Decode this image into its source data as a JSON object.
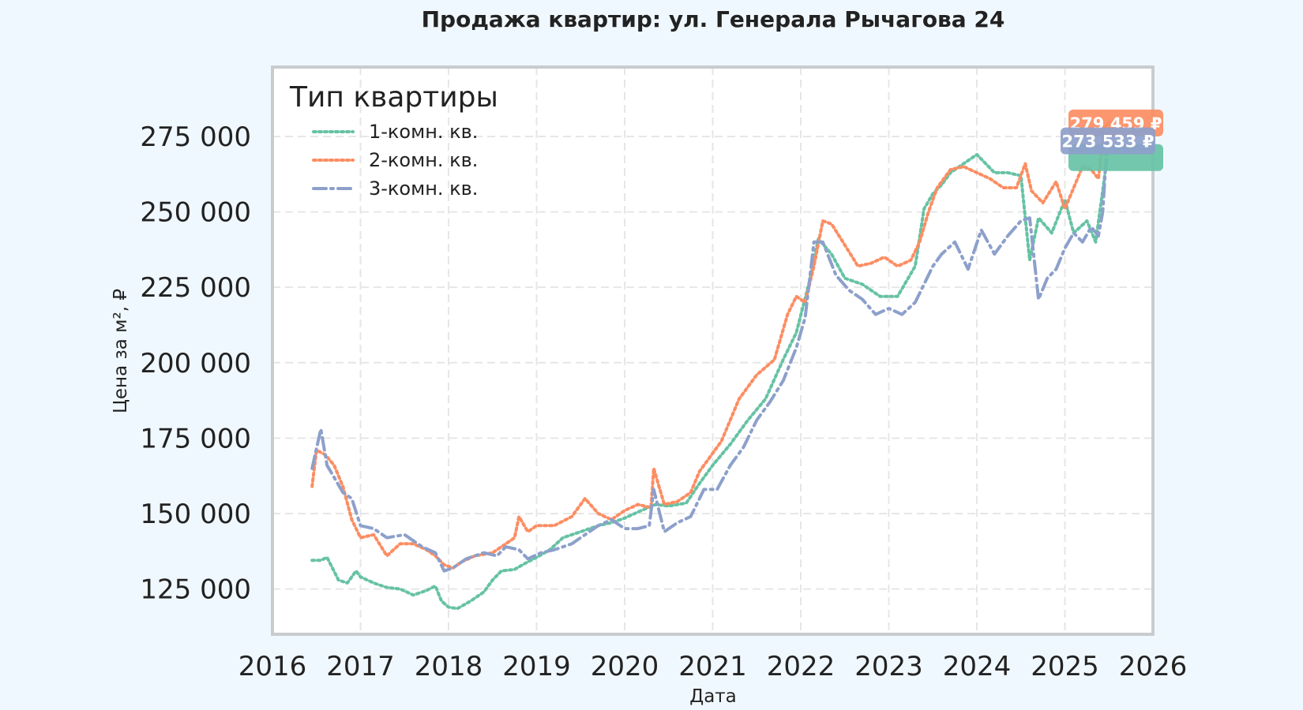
{
  "chart_data": {
    "type": "line",
    "title": "Продажа квартир: ул. Генерала Рычагова 24",
    "xlabel": "Дата",
    "ylabel": "Цена за м², ₽",
    "xlim": [
      2016.0,
      2026.0
    ],
    "ylim": [
      110000,
      298000
    ],
    "x_ticks": [
      2016,
      2017,
      2018,
      2019,
      2020,
      2021,
      2022,
      2023,
      2024,
      2025,
      2026
    ],
    "x_tick_labels": [
      "2016",
      "2017",
      "2018",
      "2019",
      "2020",
      "2021",
      "2022",
      "2023",
      "2024",
      "2025",
      "2026"
    ],
    "y_ticks": [
      125000,
      150000,
      175000,
      200000,
      225000,
      250000,
      275000
    ],
    "y_tick_labels": [
      "125 000",
      "150 000",
      "175 000",
      "200 000",
      "225 000",
      "250 000",
      "275 000"
    ],
    "grid": true,
    "legend": {
      "title": "Тип квартиры",
      "position": "top-left"
    },
    "series": [
      {
        "name": "1-комн. кв.",
        "color": "#66c2a5",
        "style": "dotted",
        "x": [
          2016.45,
          2016.55,
          2016.62,
          2016.75,
          2016.85,
          2016.95,
          2017.0,
          2017.15,
          2017.3,
          2017.45,
          2017.6,
          2017.75,
          2017.85,
          2017.92,
          2018.0,
          2018.1,
          2018.25,
          2018.4,
          2018.5,
          2018.6,
          2018.75,
          2018.9,
          2019.0,
          2019.15,
          2019.3,
          2019.5,
          2019.7,
          2019.85,
          2020.0,
          2020.15,
          2020.35,
          2020.5,
          2020.7,
          2020.85,
          2021.0,
          2021.2,
          2021.4,
          2021.6,
          2021.8,
          2021.95,
          2022.1,
          2022.2,
          2022.35,
          2022.5,
          2022.7,
          2022.9,
          2023.1,
          2023.3,
          2023.4,
          2023.5,
          2023.6,
          2023.7,
          2023.85,
          2024.0,
          2024.2,
          2024.35,
          2024.5,
          2024.6,
          2024.7,
          2024.85,
          2025.0,
          2025.1,
          2025.25,
          2025.35,
          2025.42,
          2025.48
        ],
        "values": [
          134500,
          134500,
          135500,
          128000,
          127000,
          131000,
          129000,
          127000,
          125500,
          125000,
          123000,
          124500,
          126000,
          121000,
          119000,
          118500,
          121000,
          124000,
          128000,
          131000,
          131500,
          134000,
          135500,
          138000,
          142000,
          144000,
          146000,
          147000,
          148500,
          150500,
          153000,
          152500,
          153500,
          160000,
          166000,
          173000,
          181000,
          188000,
          201000,
          210000,
          227000,
          241000,
          236000,
          228000,
          226000,
          222000,
          222000,
          232000,
          251000,
          256000,
          259000,
          263000,
          266000,
          269000,
          263000,
          263000,
          262000,
          234000,
          248000,
          243000,
          254000,
          243000,
          247000,
          240000,
          255000,
          268000
        ]
      },
      {
        "name": "2-комн. кв.",
        "color": "#fc8d62",
        "style": "dotted",
        "x": [
          2016.45,
          2016.5,
          2016.6,
          2016.7,
          2016.8,
          2016.9,
          2017.0,
          2017.15,
          2017.3,
          2017.45,
          2017.6,
          2017.75,
          2017.85,
          2017.95,
          2018.05,
          2018.15,
          2018.3,
          2018.5,
          2018.65,
          2018.75,
          2018.8,
          2018.9,
          2019.0,
          2019.2,
          2019.4,
          2019.55,
          2019.7,
          2019.85,
          2020.0,
          2020.15,
          2020.3,
          2020.33,
          2020.45,
          2020.6,
          2020.75,
          2020.85,
          2020.95,
          2021.1,
          2021.3,
          2021.5,
          2021.7,
          2021.85,
          2021.95,
          2022.05,
          2022.15,
          2022.25,
          2022.35,
          2022.5,
          2022.65,
          2022.8,
          2022.95,
          2023.1,
          2023.25,
          2023.35,
          2023.45,
          2023.55,
          2023.7,
          2023.85,
          2024.0,
          2024.15,
          2024.3,
          2024.45,
          2024.55,
          2024.62,
          2024.75,
          2024.9,
          2025.0,
          2025.1,
          2025.2,
          2025.3,
          2025.38,
          2025.45,
          2025.5
        ],
        "values": [
          159000,
          171000,
          169500,
          166000,
          159000,
          148000,
          142000,
          143000,
          136000,
          140000,
          140000,
          138000,
          136000,
          133000,
          132000,
          134000,
          136000,
          137000,
          140000,
          142000,
          149000,
          144000,
          146000,
          146000,
          149000,
          155000,
          150000,
          148000,
          151000,
          153000,
          152000,
          165000,
          153000,
          154000,
          157000,
          164000,
          168000,
          174000,
          188000,
          196000,
          201000,
          216000,
          222000,
          220000,
          232000,
          247000,
          246000,
          239000,
          232000,
          233000,
          235000,
          232000,
          234000,
          240000,
          250000,
          258000,
          264000,
          265000,
          263000,
          261000,
          258000,
          258000,
          266000,
          257000,
          253000,
          260000,
          251000,
          258000,
          265000,
          264000,
          261000,
          278000,
          279459
        ]
      },
      {
        "name": "3-комн. кв.",
        "color": "#8da0cb",
        "style": "dashdot",
        "x": [
          2016.45,
          2016.55,
          2016.62,
          2016.7,
          2016.8,
          2016.9,
          2017.0,
          2017.15,
          2017.3,
          2017.5,
          2017.7,
          2017.85,
          2017.95,
          2018.05,
          2018.2,
          2018.4,
          2018.55,
          2018.65,
          2018.8,
          2018.9,
          2019.05,
          2019.2,
          2019.4,
          2019.55,
          2019.7,
          2019.85,
          2020.0,
          2020.15,
          2020.28,
          2020.33,
          2020.45,
          2020.6,
          2020.75,
          2020.9,
          2021.05,
          2021.2,
          2021.35,
          2021.5,
          2021.65,
          2021.8,
          2021.95,
          2022.05,
          2022.15,
          2022.25,
          2022.4,
          2022.55,
          2022.7,
          2022.85,
          2023.0,
          2023.15,
          2023.3,
          2023.4,
          2023.5,
          2023.6,
          2023.75,
          2023.9,
          2024.05,
          2024.2,
          2024.35,
          2024.5,
          2024.6,
          2024.7,
          2024.8,
          2024.9,
          2025.0,
          2025.1,
          2025.2,
          2025.3,
          2025.38,
          2025.43,
          2025.48
        ],
        "values": [
          165000,
          178000,
          166000,
          162000,
          157000,
          155000,
          146000,
          145000,
          142000,
          143000,
          139000,
          137000,
          131000,
          132000,
          135000,
          137000,
          136000,
          139000,
          138000,
          135000,
          137000,
          138000,
          140000,
          143000,
          146000,
          148000,
          145000,
          145000,
          146000,
          158000,
          144000,
          147000,
          149000,
          158000,
          158000,
          166000,
          172000,
          181000,
          187000,
          194000,
          205000,
          215000,
          240000,
          240000,
          229000,
          224000,
          221000,
          216000,
          218000,
          216000,
          220000,
          226000,
          232000,
          236000,
          240000,
          231000,
          244000,
          236000,
          242000,
          247000,
          248000,
          221000,
          228000,
          231000,
          238000,
          243000,
          240000,
          245000,
          242000,
          250000,
          273533
        ]
      }
    ],
    "annotations": [
      {
        "series": "2-комн. кв.",
        "text": "279 459 ₽",
        "color": "#fc8d62"
      },
      {
        "series": "1-комн. кв.",
        "text": "",
        "color": "#66c2a5"
      },
      {
        "series": "3-комн. кв.",
        "text": "273 533 ₽",
        "color": "#8da0cb"
      }
    ]
  }
}
